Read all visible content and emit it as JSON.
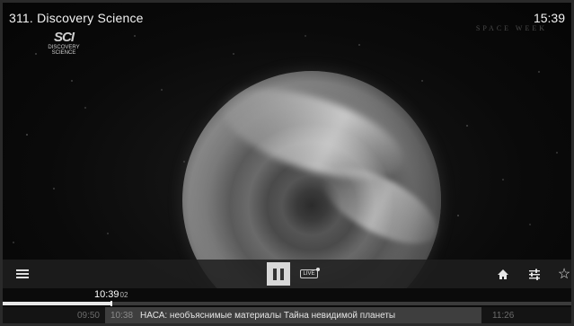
{
  "header": {
    "channel_title": "311. Discovery Science",
    "clock": "15:39"
  },
  "logo": {
    "brand": "SCI",
    "line1": "DISCOVERY",
    "line2": "SCIENCE"
  },
  "watermark": "SPACE WEEK",
  "controls": {
    "menu_icon": "hamburger-menu-icon",
    "pause_icon": "pause-icon",
    "live_label": "LIVE",
    "home_icon": "home-icon",
    "settings_icon": "sliders-icon",
    "favorite_icon": "star-icon",
    "favorite_glyph": "☆"
  },
  "timeline": {
    "current_time": "10:39",
    "current_seconds": "02",
    "progress_fraction": 0.19
  },
  "epg": {
    "prev_start": "09:50",
    "current_start": "10:38",
    "current_title": "НАСА: необъяснимые материалы Тайна невидимой планеты",
    "next_start": "11:26"
  },
  "colors": {
    "overlay_bar": "#1e1e1e",
    "active_program": "#3e3e3e",
    "progress_fill": "#e8e8e8"
  }
}
